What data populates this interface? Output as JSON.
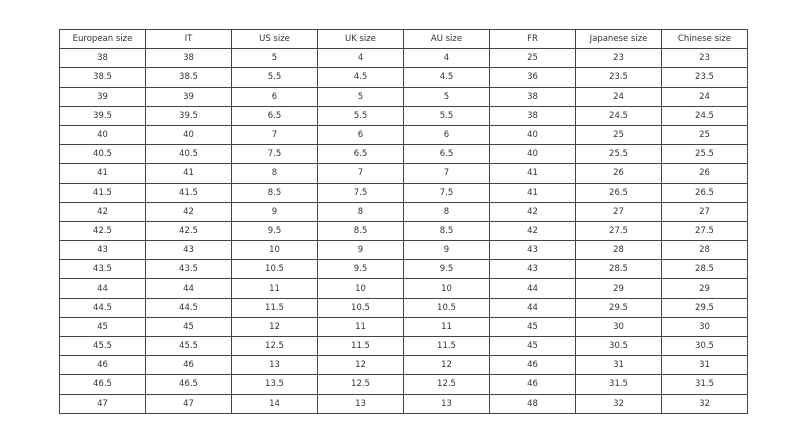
{
  "table": {
    "headers": [
      "European size",
      "IT",
      "US size",
      "UK size",
      "AU size",
      "FR",
      "Japanese size",
      "Chinese size"
    ],
    "rows": [
      [
        "38",
        "38",
        "5",
        "4",
        "4",
        "25",
        "23",
        "23"
      ],
      [
        "38.5",
        "38.5",
        "5.5",
        "4.5",
        "4.5",
        "36",
        "23.5",
        "23.5"
      ],
      [
        "39",
        "39",
        "6",
        "5",
        "5",
        "38",
        "24",
        "24"
      ],
      [
        "39.5",
        "39.5",
        "6.5",
        "5.5",
        "5.5",
        "38",
        "24.5",
        "24.5"
      ],
      [
        "40",
        "40",
        "7",
        "6",
        "6",
        "40",
        "25",
        "25"
      ],
      [
        "40.5",
        "40.5",
        "7.5",
        "6.5",
        "6.5",
        "40",
        "25.5",
        "25.5"
      ],
      [
        "41",
        "41",
        "8",
        "7",
        "7",
        "41",
        "26",
        "26"
      ],
      [
        "41.5",
        "41.5",
        "8.5",
        "7.5",
        "7.5",
        "41",
        "26.5",
        "26.5"
      ],
      [
        "42",
        "42",
        "9",
        "8",
        "8",
        "42",
        "27",
        "27"
      ],
      [
        "42.5",
        "42.5",
        "9.5",
        "8.5",
        "8.5",
        "42",
        "27.5",
        "27.5"
      ],
      [
        "43",
        "43",
        "10",
        "9",
        "9",
        "43",
        "28",
        "28"
      ],
      [
        "43.5",
        "43.5",
        "10.5",
        "9.5",
        "9.5",
        "43",
        "28.5",
        "28.5"
      ],
      [
        "44",
        "44",
        "11",
        "10",
        "10",
        "44",
        "29",
        "29"
      ],
      [
        "44.5",
        "44.5",
        "11.5",
        "10.5",
        "10.5",
        "44",
        "29.5",
        "29.5"
      ],
      [
        "45",
        "45",
        "12",
        "11",
        "11",
        "45",
        "30",
        "30"
      ],
      [
        "45.5",
        "45.5",
        "12.5",
        "11.5",
        "11.5",
        "45",
        "30.5",
        "30.5"
      ],
      [
        "46",
        "46",
        "13",
        "12",
        "12",
        "46",
        "31",
        "31"
      ],
      [
        "46.5",
        "46.5",
        "13.5",
        "12.5",
        "12.5",
        "46",
        "31.5",
        "31.5"
      ],
      [
        "47",
        "47",
        "14",
        "13",
        "13",
        "48",
        "32",
        "32"
      ]
    ]
  }
}
